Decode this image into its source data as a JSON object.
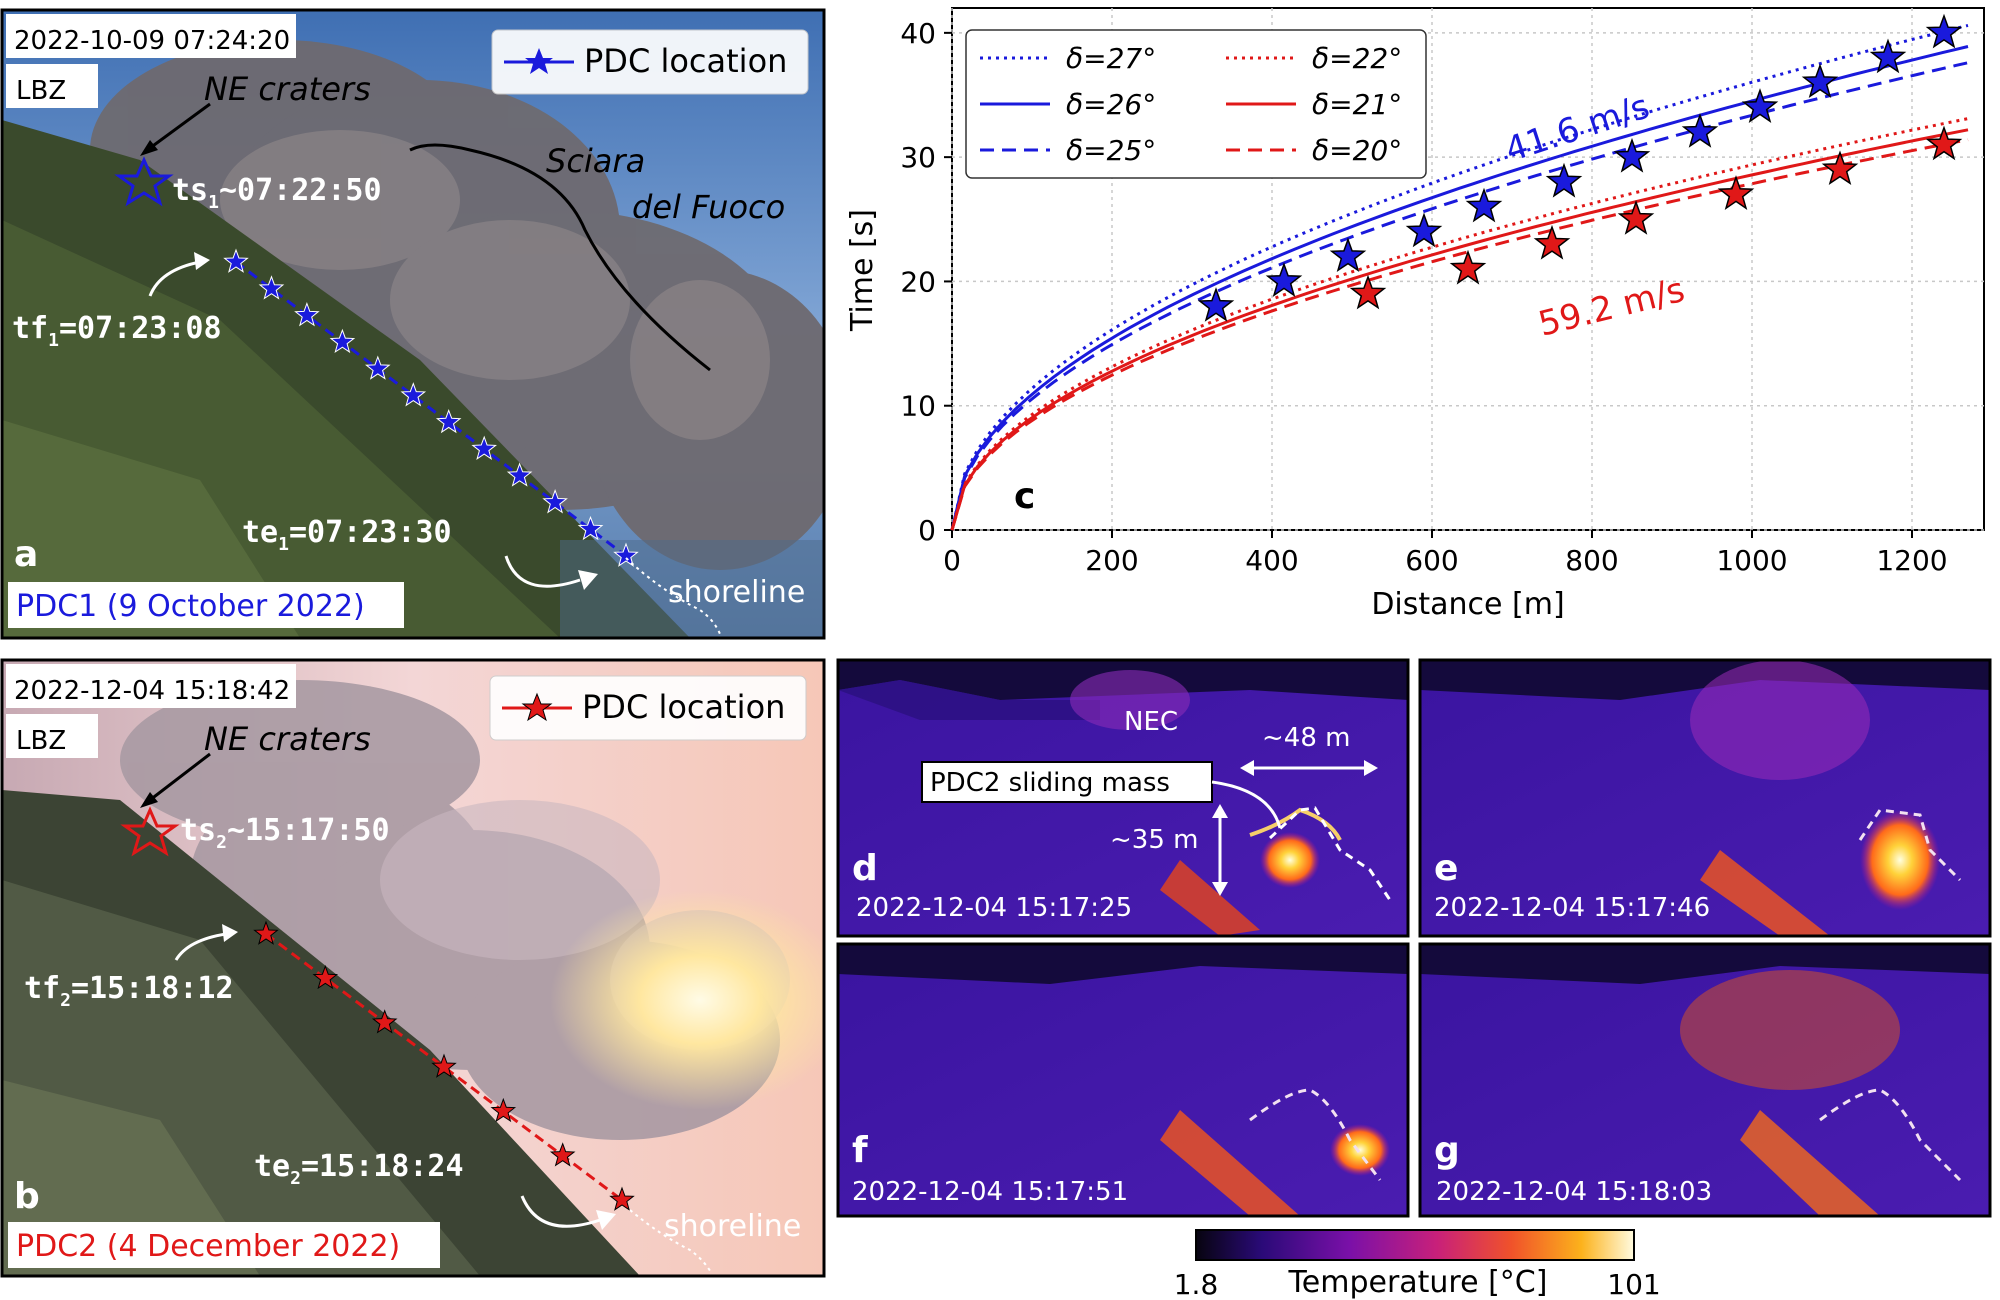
{
  "panel_a": {
    "letter": "a",
    "timestamp": "2022-10-09 07:24:20",
    "camera": "LBZ",
    "legend_label": "PDC location",
    "crater_label": "NE craters",
    "ts_prefix": "ts",
    "ts_sub": "1",
    "ts_value": "~07:22:50",
    "tf_prefix": "tf",
    "tf_sub": "1",
    "tf_value": "=07:23:08",
    "te_prefix": "te",
    "te_sub": "1",
    "te_value": "=07:23:30",
    "sciara_line1": "Sciara",
    "sciara_line2": "del Fuoco",
    "shoreline": "shoreline",
    "caption": "PDC1 (9 October 2022)",
    "color": "#1a1adc"
  },
  "panel_b": {
    "letter": "b",
    "timestamp": "2022-12-04 15:18:42",
    "camera": "LBZ",
    "legend_label": "PDC location",
    "crater_label": "NE craters",
    "ts_prefix": "ts",
    "ts_sub": "2",
    "ts_value": "~15:17:50",
    "tf_prefix": "tf",
    "tf_sub": "2",
    "tf_value": "=15:18:12",
    "te_prefix": "te",
    "te_sub": "2",
    "te_value": "=15:18:24",
    "shoreline": "shoreline",
    "caption": "PDC2 (4 December 2022)",
    "color": "#e01818"
  },
  "chart_data": {
    "type": "line",
    "panel_letter": "c",
    "xlabel": "Distance [m]",
    "ylabel": "Time [s]",
    "xlim": [
      0,
      1290
    ],
    "ylim": [
      0,
      42
    ],
    "xticks": [
      "0",
      "200",
      "400",
      "600",
      "800",
      "1000",
      "1200"
    ],
    "yticks": [
      "0",
      "10",
      "20",
      "30",
      "40"
    ],
    "grid": true,
    "legend_position": "top-left",
    "series": [
      {
        "name": "δ=27°",
        "values_x": [
          0,
          1270
        ],
        "values_y": [
          0,
          40.6
        ]
      },
      {
        "name": "δ=26°",
        "values_x": [
          0,
          1270
        ],
        "values_y": [
          0,
          38.9
        ]
      },
      {
        "name": "δ=25°",
        "values_x": [
          0,
          1270
        ],
        "values_y": [
          0,
          37.6
        ]
      },
      {
        "name": "δ=22°",
        "values_x": [
          0,
          1270
        ],
        "values_y": [
          0,
          33.1
        ]
      },
      {
        "name": "δ=21°",
        "values_x": [
          0,
          1270
        ],
        "values_y": [
          0,
          32.2
        ]
      },
      {
        "name": "δ=20°",
        "values_x": [
          0,
          1270
        ],
        "values_y": [
          0,
          31.4
        ]
      }
    ],
    "points_blue": {
      "x": [
        330,
        415,
        495,
        590,
        665,
        765,
        850,
        935,
        1010,
        1085,
        1170,
        1240
      ],
      "y": [
        18,
        20,
        22,
        24,
        26,
        28,
        30,
        32,
        34,
        36,
        38,
        40
      ]
    },
    "points_red": {
      "x": [
        520,
        645,
        750,
        855,
        980,
        1110,
        1240
      ],
      "y": [
        19,
        21,
        23,
        25,
        27,
        29,
        31
      ]
    },
    "annotation_blue": "41.6 m/s",
    "annotation_red": "59.2 m/s"
  },
  "thermal": {
    "nec_label": "NEC",
    "sliding_label": "PDC2 sliding mass",
    "width_label": "~48 m",
    "height_label": "~35 m",
    "frames": [
      {
        "letter": "d",
        "timestamp": "2022-12-04 15:17:25"
      },
      {
        "letter": "e",
        "timestamp": "2022-12-04 15:17:46"
      },
      {
        "letter": "f",
        "timestamp": "2022-12-04 15:17:51"
      },
      {
        "letter": "g",
        "timestamp": "2022-12-04 15:18:03"
      }
    ],
    "colorbar_label": "Temperature [°C]",
    "colorbar_min": "1.8",
    "colorbar_max": "101"
  }
}
